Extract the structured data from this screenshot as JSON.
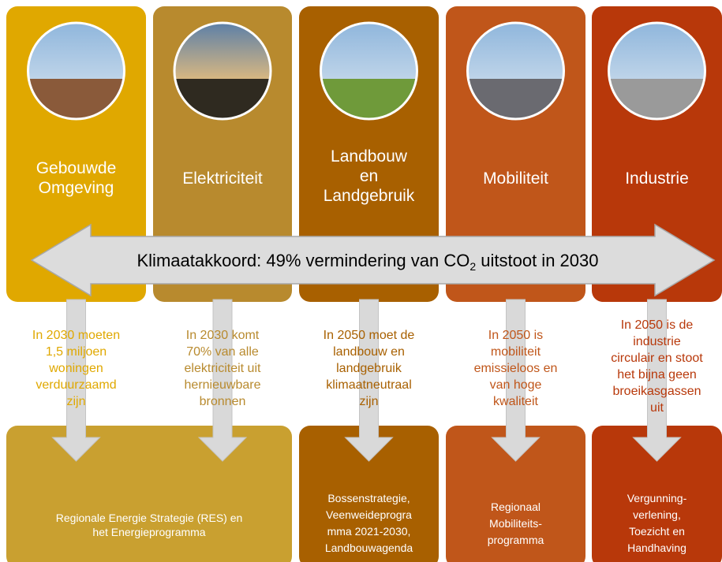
{
  "columns": [
    {
      "title": [
        "Gebouwde",
        "Omgeving"
      ],
      "text": [
        "In 2030 moeten",
        "1,5 miljoen",
        "woningen",
        "verduurzaamd",
        "zijn"
      ]
    },
    {
      "title": [
        "Elektriciteit"
      ],
      "text": [
        "In 2030 komt",
        "70% van alle",
        "elektriciteit uit",
        "hernieuwbare",
        "bronnen"
      ]
    },
    {
      "title": [
        "Landbouw",
        "en",
        "Landgebruik"
      ],
      "text": [
        "In 2050 moet de",
        "landbouw en",
        "landgebruik",
        "klimaatneutraal",
        "zijn"
      ]
    },
    {
      "title": [
        "Mobiliteit"
      ],
      "text": [
        "In 2050 is",
        "mobiliteit",
        "emissieloos en",
        "van hoge",
        "kwaliteit"
      ]
    },
    {
      "title": [
        "Industrie"
      ],
      "text": [
        "In 2050 is de",
        "industrie",
        "circulair en stoot",
        "het bijna geen",
        "broeikasgassen",
        "uit"
      ]
    }
  ],
  "banner": {
    "parts": [
      "Klimaatakkoord: 49% vermindering van CO",
      "2",
      " uitstoot in 2030"
    ]
  },
  "programs": [
    {
      "lines": [
        "Regionale Energie Strategie (RES) en",
        "het Energieprogramma"
      ]
    },
    {
      "lines": [
        "Bossenstrategie,",
        "Veenweideprogra",
        "mma 2021-2030,",
        "Landbouwagenda"
      ]
    },
    {
      "lines": [
        "Regionaal",
        "Mobiliteits-",
        "programma"
      ]
    },
    {
      "lines": [
        "Vergunning-",
        "verlening,",
        "Toezicht en",
        "Handhaving"
      ]
    }
  ]
}
